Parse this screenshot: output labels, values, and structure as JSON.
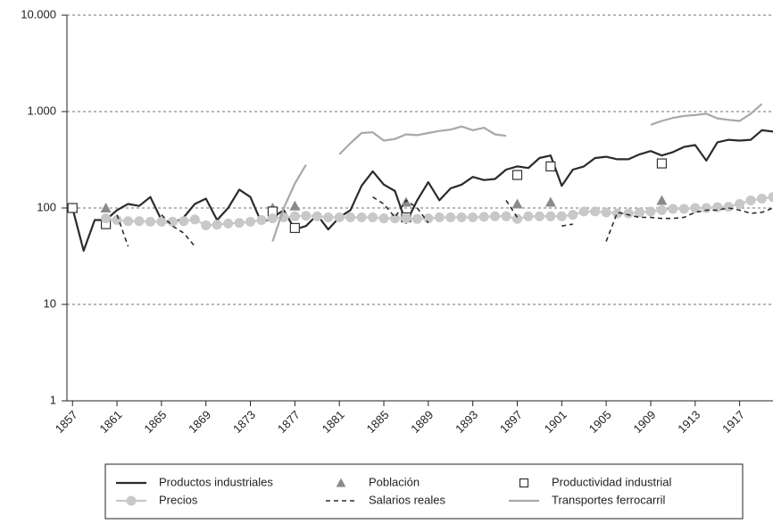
{
  "chart_data": {
    "type": "line",
    "log_y": true,
    "grid": true,
    "xlim": [
      1856.5,
      1920
    ],
    "xticks": [
      1857,
      1861,
      1865,
      1869,
      1873,
      1877,
      1881,
      1885,
      1889,
      1893,
      1897,
      1901,
      1905,
      1909,
      1913,
      1917
    ],
    "ylim": [
      1,
      10000
    ],
    "yticks": [
      1,
      10,
      100,
      {
        "value": 1000,
        "label": "1.000"
      },
      {
        "value": 10000,
        "label": "10.000"
      }
    ],
    "series": [
      {
        "name": "Productos industriales",
        "color": "#2b2b2b",
        "style": "solid",
        "marker": null,
        "x": [
          1857,
          1858,
          1859,
          1860,
          1861,
          1862,
          1863,
          1864,
          1865,
          1866,
          1867,
          1868,
          1869,
          1870,
          1871,
          1872,
          1873,
          1874,
          1875,
          1876,
          1877,
          1878,
          1879,
          1880,
          1881,
          1882,
          1883,
          1884,
          1885,
          1886,
          1887,
          1888,
          1889,
          1890,
          1891,
          1892,
          1893,
          1894,
          1895,
          1896,
          1897,
          1898,
          1899,
          1900,
          1901,
          1902,
          1903,
          1904,
          1905,
          1906,
          1907,
          1908,
          1909,
          1910,
          1911,
          1912,
          1913,
          1914,
          1915,
          1916,
          1917,
          1918,
          1919,
          1920
        ],
        "values": [
          100,
          36,
          75,
          75,
          95,
          110,
          105,
          130,
          75,
          68,
          80,
          110,
          125,
          75,
          100,
          155,
          130,
          70,
          80,
          95,
          60,
          65,
          85,
          60,
          80,
          95,
          170,
          240,
          175,
          150,
          70,
          120,
          185,
          120,
          160,
          175,
          210,
          195,
          200,
          250,
          270,
          260,
          330,
          350,
          170,
          250,
          270,
          330,
          340,
          320,
          320,
          360,
          390,
          350,
          380,
          430,
          450,
          310,
          480,
          510,
          500,
          510,
          640,
          620
        ]
      },
      {
        "name": "Población",
        "color": "#8a8a8a",
        "style": "none",
        "marker": "triangle",
        "x": [
          1857,
          1860,
          1875,
          1877,
          1887,
          1897,
          1900,
          1910
        ],
        "values": [
          100,
          100,
          100,
          105,
          115,
          110,
          115,
          120
        ]
      },
      {
        "name": "Productividad industrial",
        "color": "#333333",
        "style": "none",
        "marker": "square",
        "x": [
          1857,
          1860,
          1875,
          1877,
          1887,
          1897,
          1900,
          1910
        ],
        "values": [
          100,
          68,
          92,
          62,
          80,
          220,
          270,
          290
        ]
      },
      {
        "name": "Precios",
        "color": "#c8c8c8",
        "style": "solid",
        "marker": "circle",
        "x": [
          1860,
          1861,
          1862,
          1863,
          1864,
          1865,
          1866,
          1867,
          1868,
          1869,
          1870,
          1871,
          1872,
          1873,
          1874,
          1875,
          1876,
          1877,
          1878,
          1879,
          1880,
          1881,
          1882,
          1883,
          1884,
          1885,
          1886,
          1887,
          1888,
          1889,
          1890,
          1891,
          1892,
          1893,
          1894,
          1895,
          1896,
          1897,
          1898,
          1899,
          1900,
          1901,
          1902,
          1903,
          1904,
          1905,
          1906,
          1907,
          1908,
          1909,
          1910,
          1911,
          1912,
          1913,
          1914,
          1915,
          1916,
          1917,
          1918,
          1919,
          1920
        ],
        "values": [
          78,
          75,
          73,
          73,
          72,
          72,
          72,
          73,
          76,
          66,
          67,
          69,
          70,
          72,
          75,
          78,
          80,
          82,
          83,
          82,
          80,
          80,
          80,
          80,
          80,
          78,
          78,
          78,
          77,
          78,
          80,
          80,
          80,
          80,
          81,
          82,
          82,
          77,
          82,
          82,
          82,
          82,
          85,
          92,
          92,
          90,
          88,
          88,
          90,
          92,
          95,
          98,
          98,
          100,
          100,
          102,
          103,
          110,
          120,
          125,
          130
        ]
      },
      {
        "name": "Salarios reales",
        "color": "#2b2b2b",
        "style": "dashed",
        "marker": null,
        "x": [
          1861,
          1862,
          1863,
          1865,
          1866,
          1867,
          1868,
          1869,
          1884,
          1885,
          1886,
          1887,
          1888,
          1889,
          1890,
          1896,
          1897,
          1898,
          1901,
          1902,
          1903,
          1905,
          1906,
          1907,
          1908,
          1909,
          1910,
          1911,
          1912,
          1913,
          1914,
          1915,
          1916,
          1917,
          1918,
          1919,
          1920
        ],
        "values": [
          85,
          40,
          null,
          85,
          65,
          55,
          40,
          null,
          130,
          110,
          80,
          120,
          100,
          70,
          null,
          120,
          80,
          null,
          65,
          68,
          null,
          45,
          90,
          85,
          80,
          80,
          78,
          78,
          80,
          90,
          95,
          95,
          100,
          95,
          88,
          90,
          100
        ]
      },
      {
        "name": "Transportes ferrocarril",
        "color": "#a8a8a8",
        "style": "solid",
        "marker": null,
        "x": [
          1875,
          1876,
          1877,
          1878,
          1879,
          1881,
          1882,
          1883,
          1884,
          1885,
          1886,
          1887,
          1888,
          1889,
          1890,
          1891,
          1892,
          1893,
          1894,
          1895,
          1896,
          1897,
          1909,
          1910,
          1911,
          1912,
          1913,
          1914,
          1915,
          1916,
          1917,
          1918,
          1919
        ],
        "values": [
          45,
          100,
          180,
          280,
          null,
          360,
          470,
          600,
          610,
          500,
          520,
          580,
          570,
          600,
          630,
          650,
          700,
          640,
          680,
          580,
          560,
          null,
          730,
          800,
          860,
          900,
          920,
          950,
          850,
          820,
          800,
          950,
          1200
        ]
      }
    ]
  }
}
